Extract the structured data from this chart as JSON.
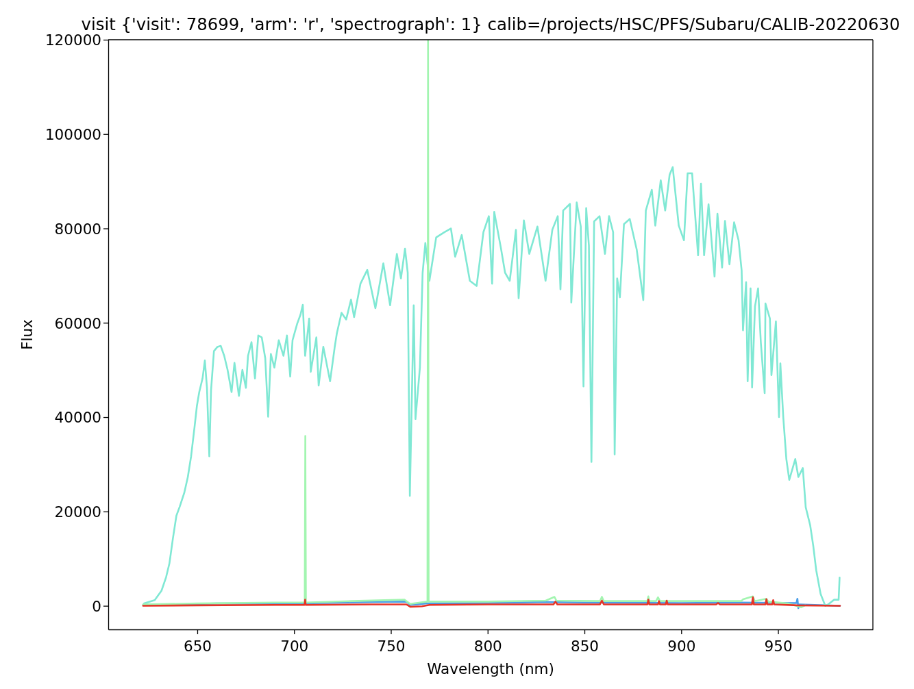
{
  "chart_data": {
    "type": "line",
    "title": "visit {'visit': 78699, 'arm': 'r', 'spectrograph': 1} calib=/projects/HSC/PFS/Subaru/CALIB-20220630",
    "xlabel": "Wavelength (nm)",
    "ylabel": "Flux",
    "xlim": [
      604,
      999
    ],
    "ylim": [
      -5000,
      120000
    ],
    "xticks": [
      650,
      700,
      750,
      800,
      850,
      900,
      950
    ],
    "yticks": [
      0,
      20000,
      40000,
      60000,
      80000,
      100000,
      120000
    ],
    "series": [
      {
        "color": "#4a9de8",
        "x": [
          622,
          640,
          660,
          700,
          740,
          758,
          760,
          768,
          800,
          830,
          850,
          900,
          930,
          959.5,
          960,
          960.5,
          961,
          982
        ],
        "values": [
          200,
          300,
          500,
          500,
          800,
          900,
          200,
          500,
          600,
          800,
          700,
          600,
          700,
          600,
          1500,
          -500,
          300,
          0
        ]
      },
      {
        "color": "#80e8d4",
        "x": [
          622.5,
          628,
          631.5,
          633.9,
          635.6,
          637.4,
          639.2,
          640.9,
          643.3,
          645.1,
          646.8,
          648.6,
          649.8,
          651,
          652.7,
          653.9,
          655,
          656.2,
          657.1,
          658.6,
          660.4,
          662.1,
          663.9,
          665.6,
          667.7,
          669.2,
          671.5,
          673.3,
          675.1,
          676.2,
          678,
          679.8,
          681.5,
          683.3,
          685.1,
          686.6,
          688,
          689.8,
          692.1,
          694.5,
          696.3,
          698,
          699.2,
          701.6,
          703.3,
          704.5,
          705.7,
          707.8,
          708.6,
          711.5,
          712.7,
          715.1,
          718.6,
          721,
          722.1,
          724.5,
          726.9,
          729.4,
          731,
          734.3,
          737.8,
          742,
          746.1,
          749.6,
          753.1,
          755.2,
          757.3,
          758.7,
          759.8,
          761.8,
          762.7,
          765,
          766.4,
          767.8,
          769.9,
          773.4,
          777.6,
          781,
          783.2,
          786.6,
          790.8,
          794.3,
          797.8,
          800.6,
          802.3,
          803.4,
          806.9,
          809,
          811.4,
          814.6,
          816,
          818.7,
          821.5,
          825.7,
          829.9,
          833.4,
          836.2,
          837.6,
          839,
          842.5,
          843.2,
          846,
          848.1,
          849.5,
          850.9,
          852.3,
          853.6,
          855,
          857.8,
          860.6,
          862.7,
          864.8,
          865.6,
          866.9,
          868.3,
          870.4,
          873.4,
          877,
          880.4,
          881.7,
          884.8,
          886.6,
          889.4,
          891.7,
          894,
          895.6,
          898.7,
          901.4,
          903.3,
          905.6,
          908.7,
          910.2,
          911.8,
          914.1,
          917.2,
          918.7,
          921.1,
          922.6,
          924.9,
          927.3,
          929.6,
          931.2,
          931.9,
          933.5,
          934.3,
          935.8,
          936.6,
          938.1,
          939.7,
          941.1,
          943.1,
          943.5,
          945.8,
          946.6,
          948.9,
          950.5,
          951.2,
          952.7,
          954.3,
          955.8,
          958.9,
          960.5,
          962.8,
          964.3,
          966.6,
          968.2,
          969.7,
          972,
          974.4,
          975.9,
          979,
          981.3,
          981.8
        ],
        "values": [
          500,
          1200,
          3200,
          6100,
          9000,
          14300,
          19100,
          21000,
          24000,
          27300,
          31700,
          38000,
          42400,
          45300,
          48200,
          52000,
          46200,
          31700,
          45700,
          54000,
          54900,
          55100,
          53000,
          50100,
          45300,
          51500,
          44500,
          50000,
          46200,
          53000,
          55900,
          48200,
          57300,
          56900,
          52500,
          40100,
          53400,
          50500,
          56300,
          53000,
          57300,
          48600,
          56300,
          59800,
          61700,
          63800,
          53000,
          60900,
          49600,
          56900,
          46700,
          54900,
          47600,
          54900,
          57800,
          62100,
          60700,
          64900,
          61200,
          68300,
          71200,
          63100,
          72600,
          63700,
          74600,
          69400,
          75700,
          70600,
          23300,
          63700,
          39600,
          50500,
          70600,
          76900,
          68900,
          78100,
          79200,
          80000,
          74000,
          78600,
          68900,
          67800,
          79200,
          82600,
          68300,
          83500,
          75700,
          70600,
          68900,
          79700,
          65200,
          81700,
          74600,
          80400,
          68900,
          79700,
          82600,
          67100,
          83800,
          85200,
          64300,
          85500,
          80400,
          46500,
          84300,
          76300,
          30500,
          81500,
          82600,
          74600,
          82600,
          79200,
          32100,
          69400,
          65400,
          80900,
          82000,
          75500,
          64800,
          83800,
          88200,
          80600,
          90200,
          83800,
          91400,
          93000,
          80600,
          77500,
          91700,
          91700,
          74300,
          89500,
          74300,
          85100,
          69800,
          83100,
          71700,
          81600,
          72400,
          81300,
          77500,
          71100,
          58400,
          68600,
          47600,
          67300,
          46300,
          63500,
          67300,
          55900,
          45100,
          64100,
          60900,
          48900,
          60300,
          40000,
          51400,
          40000,
          31100,
          26700,
          31100,
          27300,
          29200,
          20900,
          17100,
          12700,
          7600,
          2500,
          0,
          300,
          1300,
          1300,
          6000
        ]
      },
      {
        "color": "#a2f5b0",
        "x": [
          622,
          650,
          690,
          705.5,
          705.8,
          706.1,
          730,
          757,
          760,
          768.9,
          769.2,
          769.5,
          800,
          830,
          834.5,
          835.5,
          858,
          859,
          860,
          882.5,
          883,
          883.5,
          887,
          888,
          889,
          931,
          932,
          937,
          938,
          944,
          945,
          955,
          962,
          964
        ],
        "values": [
          300,
          500,
          700,
          700,
          36000,
          700,
          1000,
          1300,
          400,
          900,
          120000,
          900,
          900,
          1100,
          1900,
          1100,
          1000,
          1900,
          1000,
          1000,
          2000,
          1000,
          1000,
          1800,
          1000,
          1000,
          1400,
          2000,
          1000,
          1500,
          900,
          500,
          -300,
          100
        ]
      },
      {
        "color": "#e63426",
        "x": [
          622,
          650,
          690,
          700,
          705.4,
          705.7,
          706,
          740,
          758,
          760,
          766,
          770,
          800,
          834,
          835,
          836,
          858,
          859,
          860,
          882.5,
          883,
          883.5,
          888,
          888.5,
          889,
          892,
          892.5,
          893,
          918,
          919,
          920,
          936.5,
          937,
          937.5,
          943.5,
          944,
          944.5,
          947,
          947.5,
          948,
          960,
          982
        ],
        "values": [
          0,
          100,
          200,
          200,
          200,
          1300,
          200,
          300,
          300,
          -200,
          -100,
          200,
          300,
          300,
          900,
          300,
          300,
          1100,
          300,
          300,
          1300,
          300,
          300,
          1000,
          300,
          300,
          1100,
          300,
          300,
          600,
          300,
          300,
          1800,
          300,
          300,
          1400,
          300,
          300,
          1200,
          300,
          100,
          0
        ]
      }
    ]
  }
}
